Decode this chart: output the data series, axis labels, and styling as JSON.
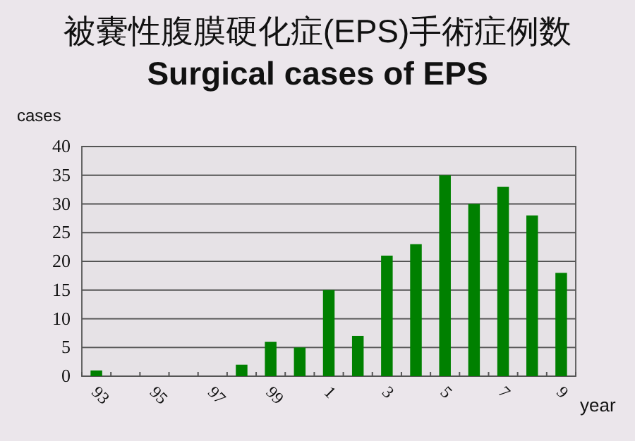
{
  "chart_data": {
    "type": "bar",
    "title": "被嚢性腹膜硬化症(EPS)手術症例数",
    "subtitle": "Surgical cases of EPS",
    "xlabel": "year",
    "ylabel": "cases",
    "categories": [
      "93",
      null,
      "95",
      null,
      "97",
      null,
      "99",
      null,
      "1",
      null,
      "3",
      null,
      "5",
      null,
      "7",
      null,
      "9"
    ],
    "values": [
      1,
      0,
      0,
      0,
      0,
      2,
      6,
      5,
      15,
      7,
      21,
      23,
      35,
      30,
      33,
      28,
      18
    ],
    "color": "#008000",
    "ylim": [
      0,
      40
    ],
    "yticks": [
      0,
      5,
      10,
      15,
      20,
      25,
      30,
      35,
      40
    ],
    "grid": "y"
  }
}
